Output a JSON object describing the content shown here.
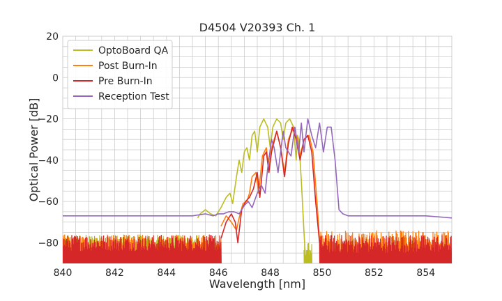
{
  "chart_data": {
    "type": "line",
    "title": "D4504 V20393 Ch. 1",
    "xlabel": "Wavelength [nm]",
    "ylabel": "Optical Power [dB]",
    "xlim": [
      840,
      855
    ],
    "ylim": [
      -90,
      20
    ],
    "x_ticks": [
      840,
      842,
      844,
      846,
      848,
      850,
      852,
      854
    ],
    "y_ticks": [
      -80,
      -60,
      -40,
      -20,
      0,
      20
    ],
    "y_tick_labels": [
      "−80",
      "−60",
      "−40",
      "−20",
      "0",
      "20"
    ],
    "grid": true,
    "legend_position": "top-left",
    "series": [
      {
        "name": "OptoBoard QA",
        "color": "#bcbd22",
        "noise": [
          {
            "x_range": [
              840,
              845.2
            ],
            "level": [
              -82,
              -76
            ]
          },
          {
            "x_range": [
              849.3,
              849.6
            ],
            "level": [
              -86,
              -80
            ]
          }
        ],
        "points": [
          [
            845.2,
            -68
          ],
          [
            845.3,
            -66
          ],
          [
            845.5,
            -64
          ],
          [
            845.7,
            -66
          ],
          [
            845.9,
            -67
          ],
          [
            846.1,
            -63
          ],
          [
            846.3,
            -58
          ],
          [
            846.45,
            -56
          ],
          [
            846.55,
            -61
          ],
          [
            846.7,
            -48
          ],
          [
            846.8,
            -40
          ],
          [
            846.9,
            -46
          ],
          [
            847.0,
            -36
          ],
          [
            847.1,
            -34
          ],
          [
            847.2,
            -40
          ],
          [
            847.3,
            -28
          ],
          [
            847.4,
            -26
          ],
          [
            847.5,
            -36
          ],
          [
            847.6,
            -24
          ],
          [
            847.75,
            -20
          ],
          [
            847.9,
            -24
          ],
          [
            848.0,
            -34
          ],
          [
            848.1,
            -24
          ],
          [
            848.25,
            -20
          ],
          [
            848.4,
            -22
          ],
          [
            848.5,
            -30
          ],
          [
            848.6,
            -22
          ],
          [
            848.75,
            -20
          ],
          [
            848.9,
            -24
          ],
          [
            849.0,
            -40
          ],
          [
            849.05,
            -28
          ],
          [
            849.1,
            -30
          ],
          [
            849.2,
            -50
          ],
          [
            849.3,
            -75
          ],
          [
            849.35,
            -85
          ]
        ]
      },
      {
        "name": "Post Burn-In",
        "color": "#ff7f0e",
        "noise": [
          {
            "x_range": [
              840,
              846.1
            ],
            "level": [
              -84,
              -76
            ]
          },
          {
            "x_range": [
              849.9,
              855
            ],
            "level": [
              -84,
              -74
            ]
          }
        ],
        "points": [
          [
            846.1,
            -72
          ],
          [
            846.3,
            -67
          ],
          [
            846.5,
            -70
          ],
          [
            846.7,
            -74
          ],
          [
            846.8,
            -68
          ],
          [
            846.95,
            -61
          ],
          [
            847.1,
            -60
          ],
          [
            847.2,
            -56
          ],
          [
            847.3,
            -48
          ],
          [
            847.45,
            -46
          ],
          [
            847.55,
            -56
          ],
          [
            847.7,
            -38
          ],
          [
            847.85,
            -34
          ],
          [
            847.95,
            -44
          ],
          [
            848.05,
            -34
          ],
          [
            848.25,
            -26
          ],
          [
            848.4,
            -34
          ],
          [
            848.55,
            -46
          ],
          [
            848.7,
            -30
          ],
          [
            848.9,
            -24
          ],
          [
            849.05,
            -30
          ],
          [
            849.15,
            -38
          ],
          [
            849.3,
            -30
          ],
          [
            849.5,
            -28
          ],
          [
            849.65,
            -36
          ],
          [
            849.8,
            -60
          ],
          [
            849.9,
            -78
          ]
        ]
      },
      {
        "name": "Pre Burn-In",
        "color": "#d62728",
        "noise": [
          {
            "x_range": [
              840,
              846.1
            ],
            "level": [
              -84,
              -76
            ]
          },
          {
            "x_range": [
              849.9,
              855
            ],
            "level": [
              -85,
              -76
            ]
          }
        ],
        "points": [
          [
            846.1,
            -78
          ],
          [
            846.3,
            -70
          ],
          [
            846.5,
            -66
          ],
          [
            846.65,
            -70
          ],
          [
            846.75,
            -80
          ],
          [
            846.9,
            -64
          ],
          [
            847.05,
            -60
          ],
          [
            847.2,
            -58
          ],
          [
            847.35,
            -54
          ],
          [
            847.5,
            -46
          ],
          [
            847.6,
            -58
          ],
          [
            847.75,
            -38
          ],
          [
            847.85,
            -36
          ],
          [
            847.95,
            -46
          ],
          [
            848.05,
            -36
          ],
          [
            848.25,
            -26
          ],
          [
            848.4,
            -34
          ],
          [
            848.55,
            -48
          ],
          [
            848.7,
            -32
          ],
          [
            848.85,
            -24
          ],
          [
            849.0,
            -30
          ],
          [
            849.15,
            -40
          ],
          [
            849.3,
            -30
          ],
          [
            849.45,
            -28
          ],
          [
            849.6,
            -36
          ],
          [
            849.75,
            -60
          ],
          [
            849.9,
            -80
          ]
        ]
      },
      {
        "name": "Reception Test",
        "color": "#9467bd",
        "noise": [],
        "points": [
          [
            840.0,
            -67
          ],
          [
            841.0,
            -67
          ],
          [
            842.0,
            -67
          ],
          [
            843.0,
            -67
          ],
          [
            844.0,
            -67
          ],
          [
            845.0,
            -67
          ],
          [
            845.5,
            -66
          ],
          [
            845.8,
            -67
          ],
          [
            846.0,
            -66
          ],
          [
            846.2,
            -66
          ],
          [
            846.4,
            -65
          ],
          [
            846.6,
            -65
          ],
          [
            846.8,
            -66
          ],
          [
            847.0,
            -62
          ],
          [
            847.15,
            -60
          ],
          [
            847.3,
            -63
          ],
          [
            847.5,
            -56
          ],
          [
            847.65,
            -52
          ],
          [
            847.8,
            -56
          ],
          [
            847.9,
            -44
          ],
          [
            848.05,
            -30
          ],
          [
            848.15,
            -34
          ],
          [
            848.3,
            -46
          ],
          [
            848.5,
            -26
          ],
          [
            848.6,
            -34
          ],
          [
            848.8,
            -38
          ],
          [
            848.95,
            -24
          ],
          [
            849.1,
            -36
          ],
          [
            849.2,
            -22
          ],
          [
            849.3,
            -36
          ],
          [
            849.45,
            -20
          ],
          [
            849.6,
            -28
          ],
          [
            849.75,
            -34
          ],
          [
            849.9,
            -22
          ],
          [
            850.05,
            -36
          ],
          [
            850.2,
            -24
          ],
          [
            850.35,
            -24
          ],
          [
            850.5,
            -40
          ],
          [
            850.65,
            -64
          ],
          [
            850.8,
            -66
          ],
          [
            851.0,
            -67
          ],
          [
            852.0,
            -67
          ],
          [
            853.0,
            -67
          ],
          [
            854.0,
            -67
          ],
          [
            855.0,
            -68
          ]
        ]
      }
    ]
  }
}
